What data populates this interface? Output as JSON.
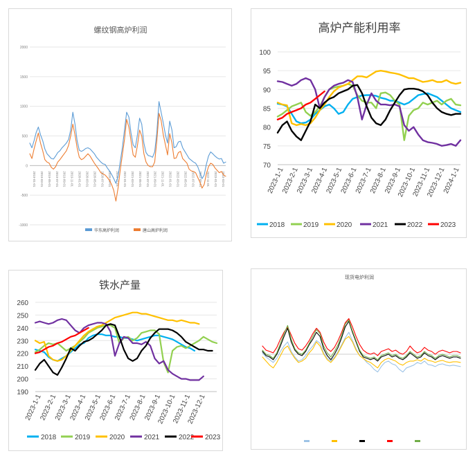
{
  "chart_data": [
    {
      "type": "line",
      "title": "螺纹钢高炉利润",
      "ylim": [
        -1000,
        2000
      ],
      "yticks": [
        2000,
        1500,
        1000,
        500,
        0,
        -500,
        -1000
      ],
      "xtick_labels": [
        "2019-01-01",
        "2019-03-01",
        "2019-05-01",
        "2019-07-01",
        "2019-09-01",
        "2019-11-01",
        "2020-01-01",
        "2020-03-01",
        "2020-05-01",
        "2020-07-01",
        "2020-09-01",
        "2020-11-01",
        "2021-01-01",
        "2021-03-01",
        "2021-05-01",
        "2021-07-01",
        "2021-09-01",
        "2021-11-01",
        "2022-01-01",
        "2022-03-01",
        "2022-05-01",
        "2022-07-01",
        "2022-09-01",
        "2022-11-01",
        "2023-01-01",
        "2023-03-01"
      ],
      "legend_position": "bottom",
      "grid": true,
      "series": [
        {
          "name": "华东高炉利润",
          "color": "#5b9bd5",
          "values": [
            380,
            300,
            420,
            560,
            650,
            520,
            420,
            280,
            200,
            160,
            120,
            110,
            160,
            220,
            250,
            300,
            340,
            380,
            440,
            600,
            900,
            700,
            420,
            260,
            240,
            260,
            290,
            300,
            280,
            240,
            200,
            140,
            100,
            60,
            30,
            20,
            -40,
            -90,
            -150,
            -220,
            -300,
            -180,
            60,
            300,
            600,
            900,
            820,
            550,
            350,
            300,
            520,
            800,
            700,
            380,
            220,
            170,
            160,
            140,
            230,
            560,
            1080,
            900,
            720,
            520,
            380,
            750,
            600,
            300,
            320,
            400,
            410,
            300,
            240,
            180,
            120,
            90,
            60,
            40,
            -20,
            -120,
            -220,
            -160,
            20,
            160,
            230,
            200,
            160,
            130,
            110,
            120,
            40,
            60
          ]
        },
        {
          "name": "唐山高炉利润",
          "color": "#ed7d31",
          "values": [
            200,
            120,
            280,
            420,
            550,
            380,
            250,
            100,
            60,
            40,
            -30,
            -60,
            -20,
            60,
            100,
            150,
            200,
            250,
            340,
            500,
            700,
            520,
            300,
            140,
            100,
            120,
            160,
            200,
            160,
            100,
            40,
            -10,
            -60,
            -120,
            -140,
            -160,
            -200,
            -250,
            -320,
            -420,
            -600,
            -380,
            -80,
            180,
            440,
            780,
            650,
            420,
            180,
            140,
            340,
            600,
            500,
            200,
            60,
            0,
            -20,
            -20,
            60,
            420,
            880,
            760,
            520,
            350,
            180,
            540,
            380,
            120,
            130,
            220,
            240,
            120,
            80,
            40,
            -60,
            -90,
            -100,
            -120,
            -200,
            -280,
            -380,
            -320,
            -140,
            -20,
            40,
            20,
            -40,
            -80,
            -120,
            -100,
            -160,
            -180
          ]
        }
      ]
    },
    {
      "type": "line",
      "title": "高炉产能利用率",
      "ylim": [
        70,
        100
      ],
      "yticks": [
        100,
        95,
        90,
        85,
        80,
        75,
        70
      ],
      "x_axis_labels": [
        "2023-1-1",
        "2023-2-1",
        "2023-3-1",
        "2023-4-1",
        "2023-5-1",
        "2023-6-1",
        "2023-7-1",
        "2023-8-1",
        "2023-9-1",
        "2023-10-1",
        "2023-11-1",
        "2023-12-1",
        "2024-1-1"
      ],
      "legend_position": "bottom",
      "grid": true,
      "series": [
        {
          "name": "2018",
          "color": "#00b0f0",
          "values": [
            86.2,
            86.0,
            85.5,
            83.5,
            81.5,
            81.0,
            81.2,
            82.0,
            83.5,
            84.5,
            85.5,
            86.0,
            85.0,
            83.5,
            84.0,
            86.0,
            87.5,
            88.0,
            88.4,
            88.5,
            88.5,
            88.3,
            87.8,
            87.5,
            87.0,
            87.0,
            86.5,
            86.0,
            86.5,
            87.5,
            88.5,
            88.8,
            89.0,
            88.5,
            88.0,
            87.0,
            86.0,
            85.0,
            84.5,
            84.0
          ]
        },
        {
          "name": "2019",
          "color": "#92d050",
          "values": [
            82.8,
            83.5,
            84.5,
            85.5,
            86.0,
            86.5,
            84.0,
            83.0,
            84.0,
            85.5,
            88.0,
            90.0,
            90.5,
            90.8,
            91.0,
            91.5,
            91.0,
            88.5,
            87.0,
            86.5,
            86.5,
            85.0,
            89.0,
            89.2,
            88.5,
            87.0,
            86.0,
            76.5,
            83.0,
            84.5,
            85.0,
            86.5,
            86.0,
            86.5,
            87.0,
            86.0,
            87.0,
            87.5,
            86.0,
            85.8
          ]
        },
        {
          "name": "2020",
          "color": "#ffc000",
          "values": [
            86.5,
            86.0,
            85.8,
            81.0,
            80.5,
            80.8,
            80.5,
            81.0,
            82.5,
            84.5,
            86.0,
            88.0,
            89.5,
            90.5,
            91.0,
            91.5,
            92.5,
            93.5,
            93.5,
            93.2,
            94.0,
            94.8,
            95.0,
            94.8,
            94.5,
            94.3,
            94.0,
            93.5,
            93.0,
            93.0,
            92.5,
            92.0,
            92.2,
            92.5,
            92.0,
            92.0,
            92.5,
            91.8,
            91.5,
            91.8
          ]
        },
        {
          "name": "2021",
          "color": "#7030a0",
          "values": [
            92.2,
            92.0,
            91.5,
            91.0,
            91.5,
            92.5,
            93.0,
            92.5,
            90.0,
            85.0,
            88.0,
            90.0,
            91.0,
            91.5,
            91.8,
            92.5,
            92.0,
            88.0,
            82.0,
            86.0,
            89.0,
            87.0,
            86.0,
            86.0,
            85.8,
            86.0,
            85.5,
            80.5,
            79.0,
            80.0,
            78.0,
            76.5,
            76.0,
            75.8,
            75.5,
            75.0,
            75.2,
            75.5,
            75.0,
            76.5
          ]
        },
        {
          "name": "2022",
          "color": "#000000",
          "values": [
            78.5,
            80.5,
            81.5,
            79.0,
            77.5,
            76.5,
            79.0,
            81.5,
            86.0,
            85.0,
            86.5,
            87.5,
            88.0,
            89.0,
            89.5,
            90.0,
            91.0,
            91.2,
            89.0,
            85.5,
            82.5,
            81.0,
            80.5,
            82.0,
            84.5,
            86.5,
            88.5,
            90.0,
            90.2,
            90.2,
            90.0,
            89.5,
            88.5,
            86.5,
            85.0,
            84.0,
            83.5,
            83.2,
            83.5,
            83.5
          ]
        },
        {
          "name": "2023",
          "color": "#ff0000",
          "values": [
            82.0,
            82.5,
            83.5,
            84.0,
            84.5,
            85.0,
            86.0,
            86.5,
            87.5,
            88.5,
            89.5
          ]
        }
      ]
    },
    {
      "type": "line",
      "title": "铁水产量",
      "ylim": [
        190,
        260
      ],
      "yticks": [
        260,
        250,
        240,
        230,
        220,
        210,
        200,
        190
      ],
      "x_axis_labels": [
        "2023-1-1",
        "2023-2-1",
        "2023-3-1",
        "2023-4-1",
        "2023-5-1",
        "2023-6-1",
        "2023-7-1",
        "2023-8-1",
        "2023-9-1",
        "2023-10-1",
        "2023-11-1",
        "2023-12-1"
      ],
      "legend_position": "bottom",
      "grid": true,
      "series": [
        {
          "name": "2018",
          "color": "#00b0f0",
          "values": [
            223,
            222,
            221,
            217,
            215,
            214,
            216,
            218,
            221,
            224,
            227,
            228,
            232,
            234,
            235,
            235,
            234,
            234,
            233,
            233,
            232,
            232,
            231,
            230,
            231,
            232,
            233,
            234,
            234,
            233,
            232,
            231,
            229,
            227,
            225,
            224,
            222
          ]
        },
        {
          "name": "2019",
          "color": "#92d050",
          "values": [
            221,
            223,
            226,
            228,
            227,
            228,
            225,
            222,
            224,
            226,
            229,
            232,
            236,
            238,
            240,
            241,
            242,
            242,
            240,
            228,
            232,
            233,
            230,
            232,
            236,
            237,
            238,
            238,
            235,
            213,
            205,
            222,
            225,
            226,
            224,
            226,
            228,
            230,
            233,
            231,
            229,
            228
          ]
        },
        {
          "name": "2020",
          "color": "#ffc000",
          "values": [
            230,
            228,
            229,
            218,
            215,
            214,
            215,
            218,
            222,
            226,
            230,
            234,
            237,
            239,
            241,
            242,
            244,
            246,
            248,
            249,
            250,
            251,
            252,
            252,
            251,
            251,
            250,
            249,
            248,
            247,
            246,
            246,
            245,
            246,
            245,
            244,
            244,
            243
          ]
        },
        {
          "name": "2021",
          "color": "#7030a0",
          "values": [
            244,
            245,
            244,
            243,
            244,
            246,
            247,
            246,
            242,
            238,
            236,
            240,
            242,
            243,
            244,
            244,
            243,
            237,
            218,
            228,
            233,
            232,
            228,
            228,
            227,
            229,
            226,
            216,
            212,
            214,
            207,
            204,
            202,
            200,
            200,
            199,
            199,
            199,
            202
          ]
        },
        {
          "name": "2022",
          "color": "#000000",
          "values": [
            207,
            212,
            215,
            210,
            205,
            203,
            209,
            216,
            224,
            222,
            226,
            229,
            230,
            232,
            235,
            238,
            242,
            243,
            242,
            233,
            223,
            216,
            214,
            216,
            222,
            226,
            232,
            236,
            239,
            239,
            239,
            238,
            236,
            233,
            229,
            227,
            225,
            223,
            223,
            222,
            222
          ]
        },
        {
          "name": "2023",
          "color": "#ff0000",
          "values": [
            220,
            221,
            223,
            225,
            226,
            228,
            229,
            231,
            233,
            234,
            236,
            238,
            240
          ]
        }
      ]
    },
    {
      "type": "line",
      "title": "现货电炉利润",
      "ylim": [
        -1000,
        1000
      ],
      "legend_position": "bottom",
      "grid": false,
      "series": [
        {
          "name": "",
          "color": "#9dc3e6",
          "values": [
            20,
            -40,
            -80,
            -120,
            -60,
            40,
            120,
            180,
            40,
            -40,
            -100,
            -80,
            -20,
            60,
            120,
            200,
            160,
            20,
            -60,
            -100,
            -40,
            40,
            140,
            240,
            320,
            200,
            80,
            -20,
            -60,
            -120,
            -160,
            -220,
            -260,
            -180,
            -120,
            -100,
            -140,
            -160,
            -220,
            -260,
            -200,
            -180,
            -160,
            -120,
            -140,
            -100,
            -150,
            -160,
            -180,
            -150,
            -140,
            -160,
            -170,
            -160,
            -170,
            -180
          ]
        },
        {
          "name": "",
          "color": "#ffc000",
          "values": [
            -40,
            -100,
            -160,
            -200,
            -120,
            -20,
            80,
            120,
            20,
            -60,
            -120,
            -100,
            -60,
            20,
            80,
            180,
            120,
            0,
            -80,
            -120,
            -60,
            20,
            120,
            220,
            260,
            180,
            60,
            -20,
            -60,
            -100,
            -120,
            -160,
            -200,
            -120,
            -80,
            -60,
            -80,
            -100,
            -140,
            -160,
            -120,
            -100,
            -100,
            -80,
            -100,
            -60,
            -90,
            -100,
            -120,
            -100,
            -90,
            -110,
            -120,
            -110,
            -110,
            -120
          ]
        },
        {
          "name": "",
          "color": "#000000",
          "values": [
            40,
            -20,
            -40,
            -80,
            0,
            120,
            260,
            380,
            180,
            60,
            0,
            -20,
            40,
            140,
            220,
            320,
            260,
            80,
            -20,
            -80,
            0,
            100,
            240,
            400,
            480,
            320,
            180,
            40,
            -40,
            -60,
            -80,
            -60,
            -100,
            -40,
            -20,
            0,
            -40,
            -20,
            -60,
            -80,
            -40,
            20,
            -20,
            -60,
            -40,
            20,
            -20,
            -40,
            -80,
            -40,
            -20,
            -40,
            -60,
            -40,
            -40,
            -60
          ]
        },
        {
          "name": "",
          "color": "#ff0000",
          "values": [
            120,
            60,
            40,
            20,
            100,
            220,
            320,
            400,
            280,
            160,
            80,
            60,
            120,
            200,
            300,
            380,
            320,
            180,
            80,
            40,
            100,
            200,
            320,
            460,
            520,
            400,
            260,
            140,
            60,
            20,
            0,
            20,
            -20,
            40,
            60,
            80,
            40,
            60,
            20,
            0,
            40,
            120,
            60,
            20,
            40,
            100,
            60,
            40,
            0,
            40,
            60,
            40,
            20,
            40,
            40,
            20
          ]
        },
        {
          "name": "",
          "color": "#70ad47",
          "values": [
            60,
            0,
            -20,
            -60,
            20,
            160,
            300,
            420,
            220,
            80,
            20,
            0,
            60,
            160,
            260,
            360,
            300,
            120,
            20,
            -40,
            40,
            140,
            280,
            440,
            500,
            340,
            200,
            60,
            -20,
            -40,
            -60,
            -40,
            -80,
            -20,
            0,
            20,
            -20,
            0,
            -40,
            -60,
            -20,
            40,
            0,
            -40,
            -20,
            40,
            0,
            -20,
            -60,
            -20,
            0,
            -20,
            -40,
            -20,
            -20,
            -40
          ]
        }
      ]
    }
  ],
  "legend_marks": {
    "chart1_marker_colors": [
      "#5b9bd5",
      "#ed7d31"
    ],
    "chart4_marker_colors": [
      "#9dc3e6",
      "#ffc000",
      "#000000",
      "#ff0000",
      "#70ad47"
    ]
  }
}
